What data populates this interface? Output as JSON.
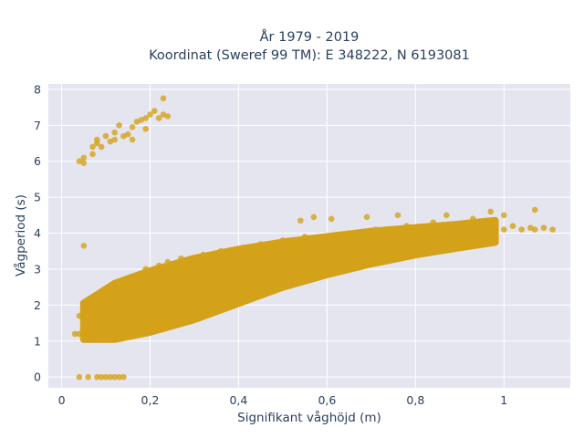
{
  "chart_data": {
    "type": "scatter",
    "title": "År 1979 - 2019",
    "subtitle": "Koordinat (Sweref 99 TM): E 348222, N 6193081",
    "xlabel": "Signifikant våghöjd (m)",
    "ylabel": "Vågperiod (s)",
    "xlim": [
      -0.03,
      1.15
    ],
    "ylim": [
      -0.3,
      8.15
    ],
    "xticks": [
      0,
      0.2,
      0.4,
      0.6,
      0.8,
      1
    ],
    "xtick_labels": [
      "0",
      "0,2",
      "0,4",
      "0,6",
      "0,8",
      "1"
    ],
    "yticks": [
      0,
      1,
      2,
      3,
      4,
      5,
      6,
      7,
      8
    ],
    "ytick_labels": [
      "0",
      "1",
      "2",
      "3",
      "4",
      "5",
      "6",
      "7",
      "8"
    ],
    "grid": true,
    "legend": "none",
    "colors": {
      "marker": "#d4a219",
      "plot_bg": "#e5e5f0",
      "grid": "#ffffff",
      "text": "#2a3f5f"
    },
    "series": [
      {
        "points": [
          [
            0.04,
            1.2
          ],
          [
            0.05,
            1.3
          ],
          [
            0.05,
            1.5
          ],
          [
            0.06,
            1.4
          ],
          [
            0.06,
            1.7
          ],
          [
            0.07,
            1.6
          ],
          [
            0.07,
            1.9
          ],
          [
            0.08,
            1.5
          ],
          [
            0.08,
            2.0
          ],
          [
            0.09,
            1.7
          ],
          [
            0.09,
            2.2
          ],
          [
            0.1,
            1.8
          ],
          [
            0.1,
            2.3
          ],
          [
            0.11,
            1.4
          ],
          [
            0.11,
            2.0
          ],
          [
            0.12,
            2.4
          ],
          [
            0.12,
            1.6
          ],
          [
            0.13,
            2.1
          ],
          [
            0.13,
            2.6
          ],
          [
            0.14,
            1.7
          ],
          [
            0.14,
            2.3
          ],
          [
            0.15,
            2.5
          ],
          [
            0.15,
            1.9
          ],
          [
            0.16,
            2.7
          ],
          [
            0.16,
            2.2
          ],
          [
            0.17,
            2.4
          ],
          [
            0.17,
            1.8
          ],
          [
            0.18,
            2.8
          ],
          [
            0.18,
            2.1
          ],
          [
            0.19,
            2.5
          ],
          [
            0.19,
            3.0
          ],
          [
            0.2,
            2.3
          ],
          [
            0.2,
            2.7
          ],
          [
            0.21,
            2.0
          ],
          [
            0.21,
            2.9
          ],
          [
            0.22,
            2.5
          ],
          [
            0.22,
            3.1
          ],
          [
            0.23,
            2.2
          ],
          [
            0.23,
            2.8
          ],
          [
            0.24,
            2.6
          ],
          [
            0.24,
            3.2
          ],
          [
            0.25,
            2.4
          ],
          [
            0.25,
            2.9
          ],
          [
            0.26,
            2.1
          ],
          [
            0.26,
            3.1
          ],
          [
            0.27,
            2.7
          ],
          [
            0.27,
            3.3
          ],
          [
            0.28,
            2.5
          ],
          [
            0.28,
            3.0
          ],
          [
            0.29,
            2.8
          ],
          [
            0.3,
            2.4
          ],
          [
            0.3,
            3.2
          ],
          [
            0.31,
            2.9
          ],
          [
            0.32,
            2.6
          ],
          [
            0.32,
            3.4
          ],
          [
            0.33,
            3.0
          ],
          [
            0.34,
            2.7
          ],
          [
            0.34,
            3.3
          ],
          [
            0.35,
            3.1
          ],
          [
            0.36,
            2.8
          ],
          [
            0.36,
            3.5
          ],
          [
            0.37,
            3.0
          ],
          [
            0.38,
            3.3
          ],
          [
            0.38,
            2.7
          ],
          [
            0.39,
            3.5
          ],
          [
            0.4,
            3.1
          ],
          [
            0.4,
            2.9
          ],
          [
            0.41,
            3.6
          ],
          [
            0.42,
            3.2
          ],
          [
            0.43,
            3.0
          ],
          [
            0.44,
            3.4
          ],
          [
            0.45,
            3.7
          ],
          [
            0.45,
            3.1
          ],
          [
            0.46,
            3.3
          ],
          [
            0.47,
            3.6
          ],
          [
            0.48,
            3.2
          ],
          [
            0.49,
            3.5
          ],
          [
            0.5,
            3.8
          ],
          [
            0.5,
            3.3
          ],
          [
            0.52,
            3.4
          ],
          [
            0.53,
            3.7
          ],
          [
            0.54,
            3.5
          ],
          [
            0.55,
            3.9
          ],
          [
            0.56,
            3.4
          ],
          [
            0.57,
            3.6
          ],
          [
            0.58,
            3.8
          ],
          [
            0.6,
            3.5
          ],
          [
            0.61,
            3.9
          ],
          [
            0.62,
            3.6
          ],
          [
            0.64,
            3.8
          ],
          [
            0.65,
            4.0
          ],
          [
            0.66,
            3.6
          ],
          [
            0.68,
            3.9
          ],
          [
            0.7,
            3.7
          ],
          [
            0.71,
            4.1
          ],
          [
            0.73,
            3.8
          ],
          [
            0.74,
            4.0
          ],
          [
            0.76,
            3.9
          ],
          [
            0.78,
            4.2
          ],
          [
            0.79,
            3.9
          ],
          [
            0.81,
            4.1
          ],
          [
            0.83,
            4.0
          ],
          [
            0.84,
            4.3
          ],
          [
            0.86,
            4.1
          ],
          [
            0.88,
            4.2
          ],
          [
            0.9,
            4.0
          ],
          [
            0.92,
            4.3
          ],
          [
            0.94,
            4.1
          ],
          [
            0.96,
            4.2
          ],
          [
            0.98,
            4.0
          ],
          [
            1.0,
            4.1
          ],
          [
            1.02,
            4.2
          ],
          [
            1.04,
            4.1
          ],
          [
            1.06,
            4.15
          ],
          [
            1.07,
            4.1
          ],
          [
            1.09,
            4.15
          ],
          [
            1.11,
            4.1
          ],
          [
            1.07,
            4.65
          ],
          [
            1.0,
            4.5
          ],
          [
            0.97,
            4.6
          ],
          [
            0.93,
            4.4
          ],
          [
            0.87,
            4.5
          ],
          [
            0.76,
            4.5
          ],
          [
            0.69,
            4.45
          ],
          [
            0.61,
            4.4
          ],
          [
            0.54,
            4.35
          ],
          [
            0.57,
            4.45
          ],
          [
            0.5,
            2.5
          ],
          [
            0.46,
            2.8
          ],
          [
            0.3,
            2.0
          ],
          [
            0.28,
            1.6
          ],
          [
            0.27,
            1.8
          ],
          [
            0.25,
            1.5
          ],
          [
            0.23,
            1.7
          ],
          [
            0.21,
            1.4
          ],
          [
            0.19,
            1.6
          ],
          [
            0.17,
            1.3
          ],
          [
            0.15,
            1.5
          ],
          [
            0.13,
            1.2
          ],
          [
            0.11,
            1.1
          ],
          [
            0.09,
            1.2
          ],
          [
            0.07,
            1.1
          ],
          [
            0.05,
            1.05
          ],
          [
            0.03,
            1.2
          ],
          [
            0.04,
            1.7
          ],
          [
            0.05,
            3.65
          ],
          [
            0.04,
            6.0
          ],
          [
            0.05,
            6.1
          ],
          [
            0.05,
            5.95
          ],
          [
            0.07,
            6.2
          ],
          [
            0.07,
            6.4
          ],
          [
            0.08,
            6.5
          ],
          [
            0.08,
            6.6
          ],
          [
            0.09,
            6.4
          ],
          [
            0.1,
            6.7
          ],
          [
            0.11,
            6.55
          ],
          [
            0.12,
            6.8
          ],
          [
            0.12,
            6.6
          ],
          [
            0.13,
            7.0
          ],
          [
            0.14,
            6.7
          ],
          [
            0.15,
            6.75
          ],
          [
            0.16,
            6.6
          ],
          [
            0.16,
            6.95
          ],
          [
            0.17,
            7.1
          ],
          [
            0.18,
            7.15
          ],
          [
            0.19,
            6.9
          ],
          [
            0.19,
            7.2
          ],
          [
            0.2,
            7.3
          ],
          [
            0.21,
            7.4
          ],
          [
            0.22,
            7.2
          ],
          [
            0.23,
            7.3
          ],
          [
            0.24,
            7.25
          ],
          [
            0.23,
            7.75
          ],
          [
            0.04,
            0.0
          ],
          [
            0.06,
            0.0
          ],
          [
            0.08,
            0.0
          ],
          [
            0.09,
            0.0
          ],
          [
            0.1,
            0.0
          ],
          [
            0.11,
            0.0
          ],
          [
            0.12,
            0.0
          ],
          [
            0.13,
            0.0
          ],
          [
            0.14,
            0.0
          ]
        ]
      }
    ]
  }
}
